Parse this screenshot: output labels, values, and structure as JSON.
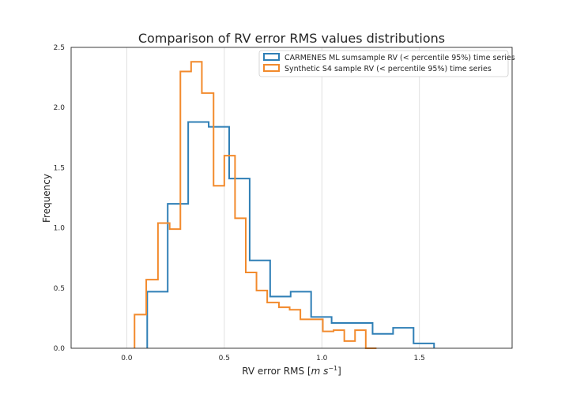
{
  "chart_data": {
    "type": "step-histogram",
    "title": "Comparison of RV error RMS values distributions",
    "xlabel_main": "RV error RMS [",
    "xlabel_unit": "m s",
    "xlabel_exp": "−1",
    "xlabel_close": "]",
    "ylabel": "Frequency",
    "xlim": [
      -0.285,
      1.975
    ],
    "ylim": [
      0,
      2.5
    ],
    "xticks": [
      0.0,
      0.5,
      1.0,
      1.5
    ],
    "xtick_labels": [
      "0.0",
      "0.5",
      "1.0",
      "1.5"
    ],
    "yticks": [
      0.0,
      0.5,
      1.0,
      1.5,
      2.0,
      2.5
    ],
    "ytick_labels": [
      "0.0",
      "0.5",
      "1.0",
      "1.5",
      "2.0",
      "2.5"
    ],
    "grid": "vertical",
    "legend_position": "top-right",
    "series": [
      {
        "name": "CARMENES ML sumsample RV (< percentile 95%) time series",
        "color": "#2f7fb6",
        "edges": [
          0.105,
          0.21,
          0.315,
          0.42,
          0.525,
          0.63,
          0.735,
          0.84,
          0.945,
          1.05,
          1.155,
          1.26,
          1.365,
          1.47,
          1.575
        ],
        "values": [
          0.47,
          1.2,
          1.88,
          1.84,
          1.41,
          0.73,
          0.43,
          0.47,
          0.26,
          0.21,
          0.21,
          0.12,
          0.17,
          0.04
        ]
      },
      {
        "name": "Synthetic S4 sample RV (< percentile 95%) time series",
        "color": "#f28a2c",
        "edges": [
          0.04,
          0.1,
          0.16,
          0.22,
          0.275,
          0.33,
          0.385,
          0.445,
          0.5,
          0.555,
          0.61,
          0.665,
          0.72,
          0.78,
          0.835,
          0.89,
          0.95,
          1.005,
          1.06,
          1.115,
          1.17,
          1.225,
          1.28
        ],
        "values": [
          0.28,
          0.57,
          1.04,
          0.99,
          2.3,
          2.38,
          2.12,
          1.35,
          1.6,
          1.08,
          0.63,
          0.48,
          0.38,
          0.34,
          0.32,
          0.24,
          0.24,
          0.14,
          0.15,
          0.06,
          0.15,
          0.0
        ]
      }
    ]
  }
}
